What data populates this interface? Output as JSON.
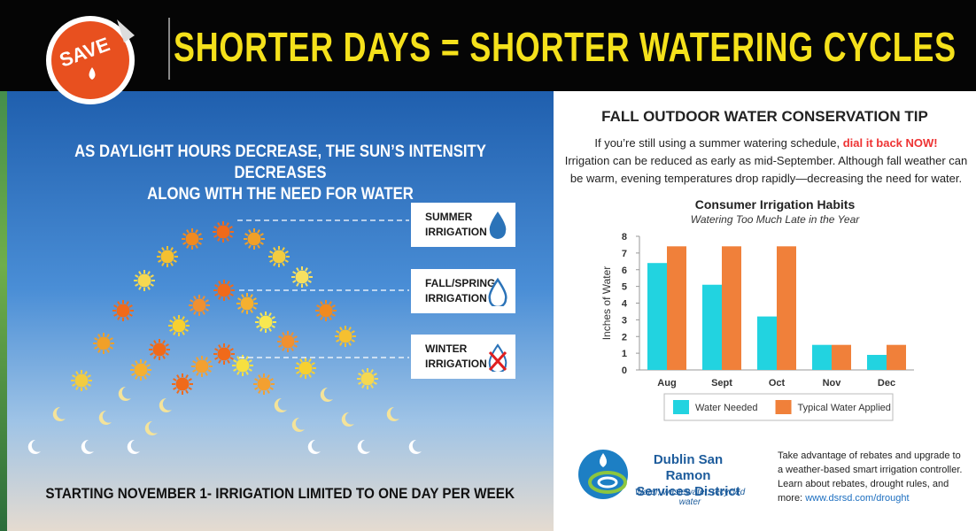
{
  "header": {
    "badge": "SAVE",
    "title": "SHORTER DAYS = SHORTER WATERING CYCLES"
  },
  "left": {
    "heading": [
      "AS DAYLIGHT HOURS DECREASE, THE SUN’S INTENSITY DECREASES",
      "ALONG WITH THE NEED FOR WATER"
    ],
    "levels": [
      {
        "line1": "SUMMER",
        "line2": "IRRIGATION"
      },
      {
        "line1": "FALL/SPRING",
        "line2": "IRRIGATION"
      },
      {
        "line1": "WINTER",
        "line2": "IRRIGATION"
      }
    ],
    "footer": "STARTING NOVEMBER 1- IRRIGATION LIMITED TO ONE DAY PER WEEK"
  },
  "right": {
    "heading": "FALL OUTDOOR WATER CONSERVATION TIP",
    "intro": "If you’re still using a summer watering schedule, ",
    "highlight": "dial it back NOW!",
    "body": "Irrigation can be reduced as early as mid-September. Although fall weather can be warm, evening temperatures drop rapidly—decreasing the need for water.",
    "logo": {
      "line1": "Dublin San Ramon",
      "line2": "Services District",
      "tagline": "Water, wastewater, recycled water"
    },
    "rebate": "Take advantage of rebates and upgrade to a weather-based smart irrigation controller. Learn about rebates, drought rules, and more: ",
    "link": "www.dsrsd.com/drought"
  },
  "chart_data": {
    "type": "bar",
    "title": "Consumer Irrigation Habits",
    "subtitle": "Watering Too Much Late in the Year",
    "y_label": "Inches of Water",
    "categories": [
      "Aug",
      "Sept",
      "Oct",
      "Nov",
      "Dec"
    ],
    "series": [
      {
        "name": "Water Needed",
        "color": "#22d3e0",
        "values": [
          6.4,
          5.1,
          3.2,
          1.5,
          0.9
        ]
      },
      {
        "name": "Typical Water Applied",
        "color": "#f0803a",
        "values": [
          7.4,
          7.4,
          7.4,
          1.5,
          1.5
        ]
      }
    ],
    "ylim": [
      0,
      8
    ],
    "yticks": [
      0,
      1,
      2,
      3,
      4,
      5,
      6,
      7,
      8
    ]
  }
}
